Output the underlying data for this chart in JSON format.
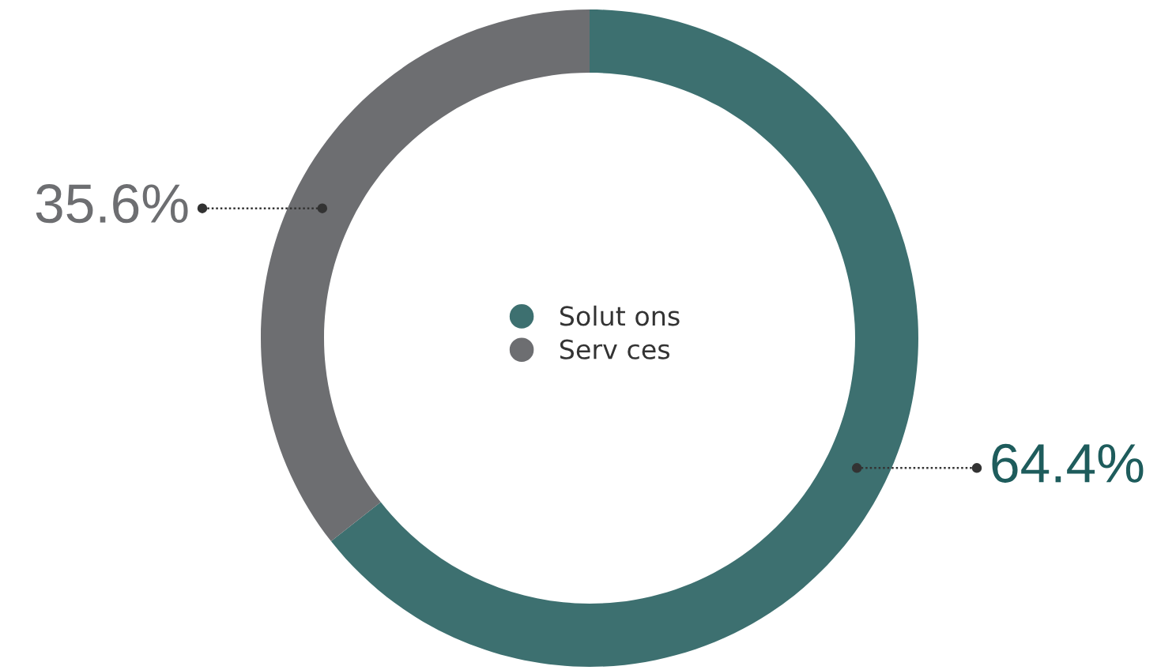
{
  "chart_data": {
    "type": "donut",
    "categories": [
      "Solut ons",
      "Serv ces"
    ],
    "values": [
      64.4,
      35.6
    ],
    "colors": [
      "#3d7070",
      "#6d6e71"
    ],
    "value_labels": [
      "64.4%",
      "35.6%"
    ],
    "legend": "center"
  }
}
